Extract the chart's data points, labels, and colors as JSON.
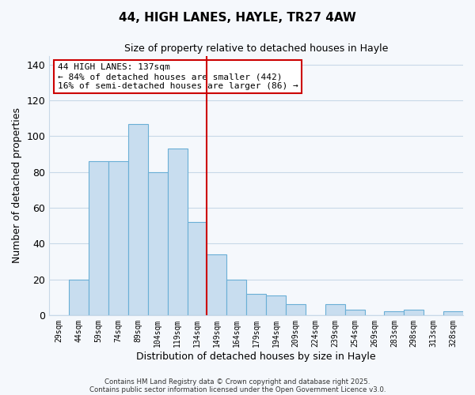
{
  "title": "44, HIGH LANES, HAYLE, TR27 4AW",
  "subtitle": "Size of property relative to detached houses in Hayle",
  "xlabel": "Distribution of detached houses by size in Hayle",
  "ylabel": "Number of detached properties",
  "bar_color": "#c8ddef",
  "bar_edge_color": "#6aafd6",
  "bins": [
    "29sqm",
    "44sqm",
    "59sqm",
    "74sqm",
    "89sqm",
    "104sqm",
    "119sqm",
    "134sqm",
    "149sqm",
    "164sqm",
    "179sqm",
    "194sqm",
    "209sqm",
    "224sqm",
    "239sqm",
    "254sqm",
    "269sqm",
    "283sqm",
    "298sqm",
    "313sqm",
    "328sqm"
  ],
  "values": [
    0,
    20,
    86,
    86,
    107,
    80,
    93,
    52,
    34,
    20,
    12,
    11,
    6,
    0,
    6,
    3,
    0,
    2,
    3,
    0,
    2
  ],
  "vline_x_index": 7,
  "vline_color": "#cc0000",
  "ylim": [
    0,
    145
  ],
  "yticks": [
    0,
    20,
    40,
    60,
    80,
    100,
    120,
    140
  ],
  "annotation_title": "44 HIGH LANES: 137sqm",
  "annotation_line1": "← 84% of detached houses are smaller (442)",
  "annotation_line2": "16% of semi-detached houses are larger (86) →",
  "footer1": "Contains HM Land Registry data © Crown copyright and database right 2025.",
  "footer2": "Contains public sector information licensed under the Open Government Licence v3.0.",
  "background_color": "#f5f8fc",
  "grid_color": "#c8d8e8"
}
